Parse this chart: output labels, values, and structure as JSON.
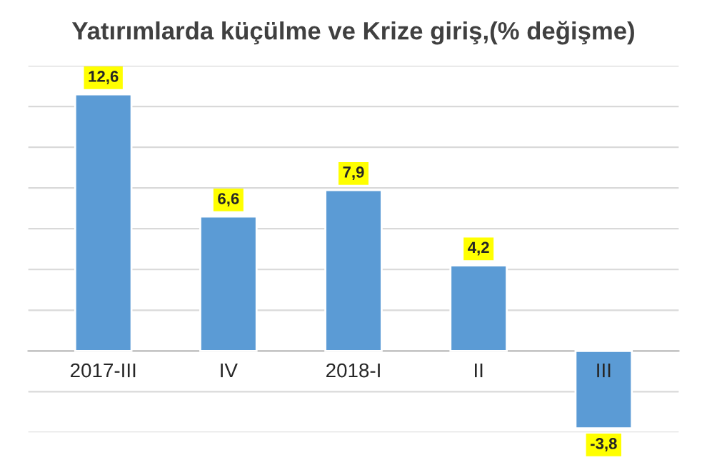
{
  "chart_data": {
    "type": "bar",
    "title": "Yatırımlarda küçülme ve Krize giriş,(% değişme)",
    "categories": [
      "2017-III",
      "IV",
      "2018-I",
      "II",
      "III"
    ],
    "values": [
      12.6,
      6.6,
      7.9,
      4.2,
      -3.8
    ],
    "value_labels": [
      "12,6",
      "6,6",
      "7,9",
      "4,2",
      "-3,8"
    ],
    "color": "#5b9bd5",
    "ylim": [
      -4,
      14
    ],
    "yticks": [
      {
        "value": -4,
        "label": null
      },
      {
        "value": -2,
        "label": null
      },
      {
        "value": 0,
        "label": null
      },
      {
        "value": 2,
        "label": null
      },
      {
        "value": 4,
        "label": null
      },
      {
        "value": 6,
        "label": null
      },
      {
        "value": 8,
        "label": null
      },
      {
        "value": 10,
        "label": null
      },
      {
        "value": 12,
        "label": null
      },
      {
        "value": 14,
        "label": null
      }
    ],
    "tick_labels": "x",
    "grid": "y"
  }
}
